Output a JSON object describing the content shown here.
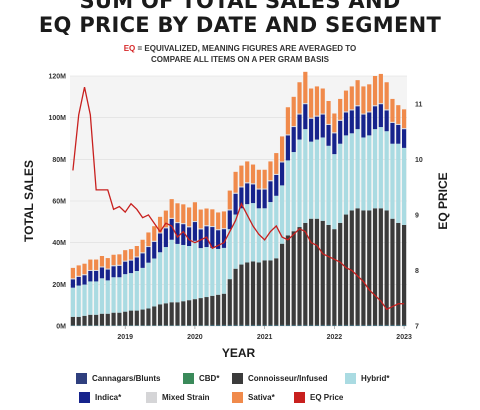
{
  "title_line1": "SUM OF TOTAL SALES AND",
  "title_line2": "EQ PRICE BY DATE AND SEGMENT",
  "note_prefix": "EQ",
  "note_line1": " = EQUIVALIZED, MEANING FIGURES ARE AVERAGED TO",
  "note_line2": "COMPARE ALL ITEMS ON A PER GRAM BASIS",
  "chart_data": {
    "type": "bar",
    "xlabel": "YEAR",
    "ylabel": "TOTAL SALES",
    "y2label": "EQ PRICE",
    "ylim": [
      0,
      120000000
    ],
    "y2lim": [
      7,
      11.5
    ],
    "y_ticks": [
      "0M",
      "20M",
      "40M",
      "60M",
      "80M",
      "100M",
      "120M"
    ],
    "y2_ticks": [
      "7",
      "8",
      "9",
      "10",
      "11"
    ],
    "x_ticks": [
      "2019",
      "2020",
      "2021",
      "2022",
      "2023"
    ],
    "categories": [
      "2018-04",
      "2018-05",
      "2018-06",
      "2018-07",
      "2018-08",
      "2018-09",
      "2018-10",
      "2018-11",
      "2018-12",
      "2019-01",
      "2019-02",
      "2019-03",
      "2019-04",
      "2019-05",
      "2019-06",
      "2019-07",
      "2019-08",
      "2019-09",
      "2019-10",
      "2019-11",
      "2019-12",
      "2020-01",
      "2020-02",
      "2020-03",
      "2020-04",
      "2020-05",
      "2020-06",
      "2020-07",
      "2020-08",
      "2020-09",
      "2020-10",
      "2020-11",
      "2020-12",
      "2021-01",
      "2021-02",
      "2021-03",
      "2021-04",
      "2021-05",
      "2021-06",
      "2021-07",
      "2021-08",
      "2021-09",
      "2021-10",
      "2021-11",
      "2021-12",
      "2022-01",
      "2022-02",
      "2022-03",
      "2022-04",
      "2022-05",
      "2022-06",
      "2022-07",
      "2022-08",
      "2022-09",
      "2022-10",
      "2022-11",
      "2022-12",
      "2023-01"
    ],
    "series": [
      {
        "name": "Cannagars/Blunts",
        "color": "#2f3f7e",
        "values": [
          0.2,
          0.2,
          0.2,
          0.2,
          0.2,
          0.2,
          0.2,
          0.2,
          0.2,
          0.2,
          0.2,
          0.2,
          0.2,
          0.2,
          0.2,
          0.2,
          0.2,
          0.2,
          0.2,
          0.2,
          0.2,
          0.2,
          0.2,
          0.2,
          0.3,
          0.3,
          0.3,
          0.3,
          0.3,
          0.3,
          0.3,
          0.3,
          0.3,
          0.3,
          0.3,
          0.3,
          0.3,
          0.3,
          0.3,
          0.3,
          0.3,
          0.3,
          0.3,
          0.3,
          0.3,
          0.3,
          0.3,
          0.3,
          0.3,
          0.3,
          0.3,
          0.3,
          0.3,
          0.3,
          0.3,
          0.3,
          0.3,
          0.3
        ]
      },
      {
        "name": "CBD*",
        "color": "#3a8a5a",
        "values": [
          0.2,
          0.2,
          0.2,
          0.2,
          0.2,
          0.2,
          0.2,
          0.2,
          0.2,
          0.2,
          0.2,
          0.2,
          0.2,
          0.2,
          0.2,
          0.2,
          0.2,
          0.2,
          0.2,
          0.2,
          0.2,
          0.2,
          0.2,
          0.2,
          0.2,
          0.2,
          0.2,
          0.2,
          0.2,
          0.2,
          0.2,
          0.2,
          0.2,
          0.2,
          0.2,
          0.2,
          0.2,
          0.2,
          0.2,
          0.2,
          0.2,
          0.2,
          0.2,
          0.2,
          0.2,
          0.2,
          0.2,
          0.2,
          0.2,
          0.2,
          0.2,
          0.2,
          0.2,
          0.2,
          0.2,
          0.2,
          0.2,
          0.2
        ]
      },
      {
        "name": "Connoisseur/Infused",
        "color": "#3b3b3b",
        "values": [
          4,
          4,
          4.5,
          5,
          5,
          5.5,
          5.5,
          6,
          6,
          6.5,
          7,
          7,
          7.5,
          8,
          9,
          10,
          10.5,
          11,
          11,
          11.5,
          12,
          12.5,
          13,
          13.5,
          14,
          14.5,
          15,
          22,
          27,
          29,
          30,
          30.5,
          30,
          31,
          31,
          32,
          39,
          43,
          45,
          47,
          49,
          51,
          51,
          50,
          48,
          46,
          49,
          53,
          55,
          56,
          55,
          55,
          56,
          56,
          55,
          51,
          49,
          48
        ]
      },
      {
        "name": "Hybrid*",
        "color": "#aadbe2",
        "values": [
          14,
          15,
          15,
          16,
          16,
          17,
          16,
          17,
          17,
          18,
          18,
          19,
          20,
          22,
          23,
          25,
          27,
          30,
          28,
          27,
          26,
          28,
          24,
          24,
          23,
          22,
          22,
          24,
          26,
          27,
          28,
          28,
          26,
          25,
          28,
          30,
          28,
          36,
          38,
          42,
          45,
          37,
          38,
          40,
          38,
          36,
          38,
          38,
          37,
          38,
          35,
          36,
          38,
          39,
          38,
          36,
          38,
          37
        ]
      },
      {
        "name": "Indica*",
        "color": "#16238c",
        "values": [
          4,
          4.2,
          4.5,
          5,
          5,
          5.2,
          5.2,
          5.3,
          5.5,
          6,
          6,
          6.5,
          7,
          7.5,
          8,
          9,
          9,
          10,
          10,
          10,
          9,
          9,
          9,
          10,
          10,
          9,
          9,
          9,
          10,
          10,
          10,
          9,
          9,
          9,
          10,
          10,
          11,
          12,
          12,
          12,
          12,
          11,
          11,
          11,
          10,
          10,
          11,
          11,
          11,
          11,
          11,
          11,
          11,
          11,
          10,
          10,
          9,
          9
        ]
      },
      {
        "name": "Mixed Strain",
        "color": "#d5d5d7",
        "values": [
          0.5,
          0.5,
          0.5,
          0.5,
          0.5,
          0.5,
          0.5,
          0.5,
          0.5,
          0.5,
          0.5,
          0.5,
          0.5,
          0.5,
          0.5,
          0.5,
          0.5,
          0.5,
          0.5,
          0.5,
          0.5,
          0.5,
          0.5,
          0.5,
          0.5,
          0.5,
          0.5,
          0.5,
          0.5,
          0.5,
          0.5,
          0.5,
          0.5,
          0.5,
          0.5,
          0.5,
          0.5,
          0.5,
          0.5,
          0.5,
          0.5,
          0.5,
          0.5,
          0.5,
          0.5,
          0.5,
          0.5,
          0.5,
          0.5,
          0.5,
          0.5,
          0.5,
          0.5,
          0.5,
          0.5,
          0.5,
          0.5,
          0.5
        ]
      },
      {
        "name": "Sativa*",
        "color": "#f08a4b",
        "values": [
          5,
          5,
          5,
          5,
          5,
          5,
          5,
          5,
          5,
          5,
          5,
          5,
          6,
          6.5,
          7,
          7.5,
          8,
          9,
          9,
          9,
          9,
          9,
          9,
          8,
          8,
          8,
          8,
          9,
          10,
          10,
          10,
          9,
          9,
          9,
          9,
          10,
          12,
          13,
          14,
          15,
          15,
          14,
          14,
          12,
          11,
          9,
          10,
          10,
          11,
          12,
          13,
          13,
          14,
          14,
          13,
          11,
          9,
          9
        ]
      }
    ],
    "line": {
      "name": "EQ Price",
      "color": "#c8201e",
      "values": [
        9.8,
        10.8,
        11.3,
        10.8,
        9.45,
        9.45,
        9.45,
        9.1,
        9.15,
        9.05,
        9.2,
        9.1,
        8.95,
        9.0,
        8.85,
        8.7,
        8.85,
        8.8,
        8.6,
        8.7,
        8.55,
        8.5,
        8.55,
        8.6,
        8.4,
        8.45,
        8.5,
        8.7,
        8.9,
        9.2,
        9.0,
        8.8,
        8.65,
        8.55,
        8.7,
        8.8,
        8.6,
        8.55,
        8.65,
        8.75,
        8.7,
        8.5,
        8.45,
        8.3,
        8.25,
        8.2,
        8.15,
        8.05,
        8.0,
        7.9,
        7.8,
        7.65,
        7.55,
        7.45,
        7.3,
        7.35,
        7.4,
        7.4
      ]
    }
  }
}
